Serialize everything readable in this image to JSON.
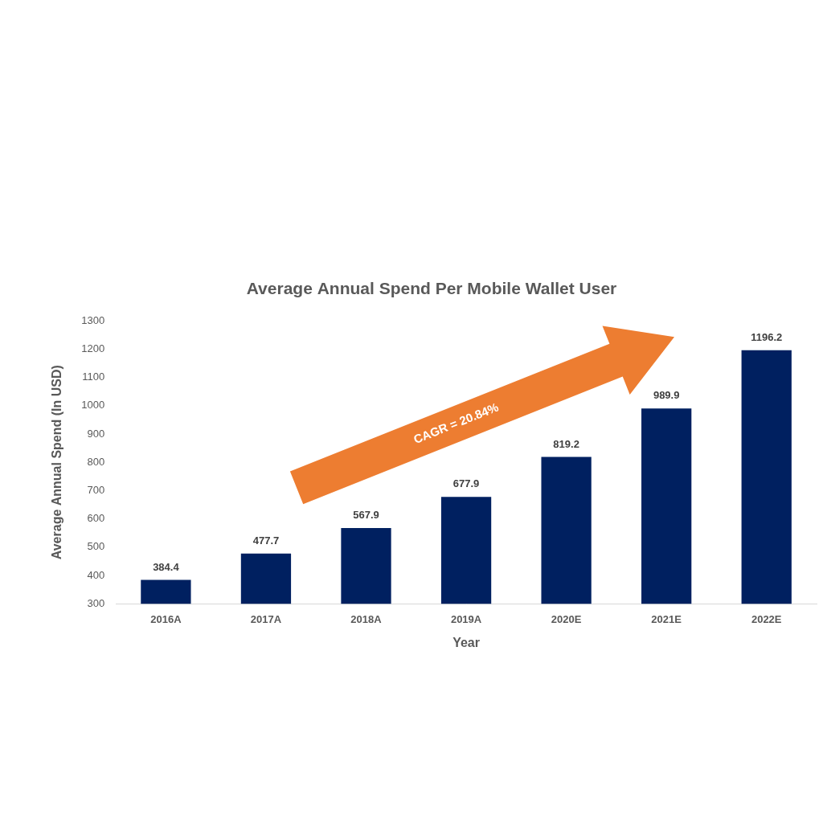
{
  "chart_data": {
    "type": "bar",
    "title": "Average Annual Spend Per Mobile Wallet User",
    "x_label": "Year",
    "y_label": "Average Annual Spend (In USD)",
    "annotation": "CAGR = 20.84%",
    "categories": [
      "2016A",
      "2017A",
      "2018A",
      "2019A",
      "2020E",
      "2021E",
      "2022E"
    ],
    "values": [
      384.4,
      477.7,
      567.9,
      677.9,
      819.2,
      989.9,
      1196.2
    ],
    "color": "#002060",
    "ylim": [
      300,
      1300
    ],
    "yticks": [
      300,
      400,
      500,
      600,
      700,
      800,
      900,
      1000,
      1100,
      1200,
      1300
    ],
    "grid": false,
    "data_labels": true
  }
}
